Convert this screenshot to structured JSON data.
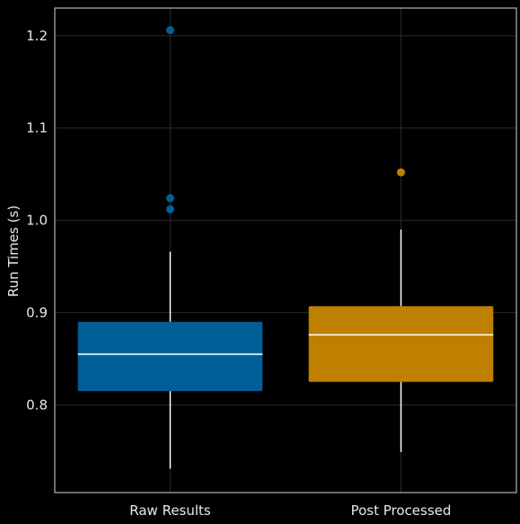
{
  "chart_data": {
    "type": "boxplot",
    "ylabel": "Run Times (s)",
    "xlabel": "",
    "title": "",
    "categories": [
      "Raw Results",
      "Post Processed"
    ],
    "ylim": [
      0.705,
      1.23
    ],
    "yticks": [
      0.8,
      0.9,
      1.0,
      1.1,
      1.2
    ],
    "ytick_labels": [
      "0.8",
      "0.9",
      "1.0",
      "1.1",
      "1.2"
    ],
    "grid": true,
    "series": [
      {
        "category": "Raw Results",
        "color": "#005f96",
        "whisker_low": 0.731,
        "q1": 0.815,
        "median": 0.855,
        "q3": 0.89,
        "whisker_high": 0.966,
        "outliers": [
          1.012,
          1.024,
          1.206
        ]
      },
      {
        "category": "Post Processed",
        "color": "#bf8000",
        "whisker_low": 0.749,
        "q1": 0.825,
        "median": 0.876,
        "q3": 0.907,
        "whisker_high": 0.99,
        "outliers": [
          1.052
        ]
      }
    ],
    "colors": {
      "background": "#000000",
      "frame": "#b3b3b3",
      "grid": "#2a2a2a",
      "whisker": "#ffffff",
      "median": "#ffffff",
      "text": "#e8e8e8"
    }
  }
}
